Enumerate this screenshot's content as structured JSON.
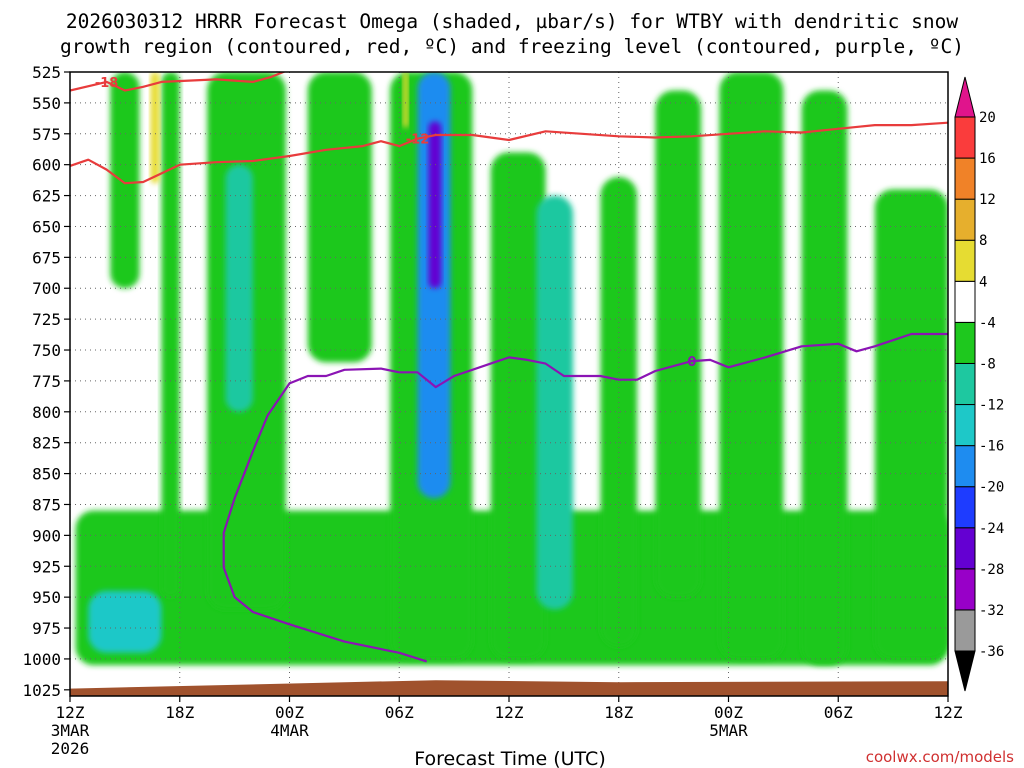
{
  "title": {
    "line1": "2026030312 HRRR Forecast Omega (shaded, µbar/s) for WTBY with dendritic snow",
    "line2": "growth region (contoured, red, ºC) and freezing level (contoured, purple, ºC)"
  },
  "x_axis_label": "Forecast Time (UTC)",
  "credit": "coolwx.com/models",
  "colors": {
    "frame": "#000000",
    "ground": "#a0522d",
    "grid": "#666666",
    "red_contour": "#e83c3c",
    "purple_contour": "#8b14b4"
  },
  "chart_data": {
    "type": "heatmap",
    "y_axis": {
      "quantity": "pressure (hPa)",
      "range": [
        525,
        1025
      ],
      "ticks": [
        525,
        550,
        575,
        600,
        625,
        650,
        675,
        700,
        725,
        750,
        775,
        800,
        825,
        850,
        875,
        900,
        925,
        950,
        975,
        1000,
        1025
      ]
    },
    "x_axis": {
      "quantity": "forecast hour",
      "range": [
        0,
        48
      ],
      "ticks": [
        {
          "hour": 0,
          "label": "12Z",
          "sub1": "3MAR",
          "sub2": "2026"
        },
        {
          "hour": 6,
          "label": "18Z",
          "sub1": "",
          "sub2": ""
        },
        {
          "hour": 12,
          "label": "00Z",
          "sub1": "4MAR",
          "sub2": ""
        },
        {
          "hour": 18,
          "label": "06Z",
          "sub1": "",
          "sub2": ""
        },
        {
          "hour": 24,
          "label": "12Z",
          "sub1": "",
          "sub2": ""
        },
        {
          "hour": 30,
          "label": "18Z",
          "sub1": "",
          "sub2": ""
        },
        {
          "hour": 36,
          "label": "00Z",
          "sub1": "5MAR",
          "sub2": ""
        },
        {
          "hour": 42,
          "label": "06Z",
          "sub1": "",
          "sub2": ""
        },
        {
          "hour": 48,
          "label": "12Z",
          "sub1": "",
          "sub2": ""
        }
      ]
    },
    "colorbar": {
      "levels": [
        -36,
        -32,
        -28,
        -24,
        -20,
        -16,
        -12,
        -8,
        -4,
        4,
        8,
        12,
        16,
        20
      ],
      "labels": [
        "-36",
        "-32",
        "-28",
        "-24",
        "-20",
        "-16",
        "-12",
        "-8",
        "-4",
        "4",
        "8",
        "12",
        "16",
        "20"
      ],
      "colors": [
        "#000000",
        "#9a9a9a",
        "#9800c8",
        "#6400d2",
        "#1e3cff",
        "#1e8cf0",
        "#1ec8c8",
        "#1ec8a0",
        "#1ec81e",
        "#ffffff",
        "#e6dc32",
        "#e6af2d",
        "#f08228",
        "#fa3c3c",
        "#e0148c"
      ]
    },
    "omega_regions": [
      {
        "hour_start": 0.3,
        "hour_end": 48,
        "p_top": 880,
        "p_bottom": 1005,
        "omega": -6,
        "note": "broad low-level ascent"
      },
      {
        "hour_start": 1,
        "hour_end": 5,
        "p_top": 945,
        "p_bottom": 995,
        "omega": -13
      },
      {
        "hour_start": 2.2,
        "hour_end": 3.8,
        "p_top": 525,
        "p_bottom": 700,
        "omega": -6
      },
      {
        "hour_start": 5,
        "hour_end": 6,
        "p_top": 525,
        "p_bottom": 950,
        "omega": -6
      },
      {
        "hour_start": 7.5,
        "hour_end": 11.8,
        "p_top": 525,
        "p_bottom": 960,
        "omega": -7
      },
      {
        "hour_start": 8.5,
        "hour_end": 10,
        "p_top": 600,
        "p_bottom": 800,
        "omega": -11
      },
      {
        "hour_start": 13,
        "hour_end": 16.5,
        "p_top": 525,
        "p_bottom": 760,
        "omega": -6
      },
      {
        "hour_start": 17.5,
        "hour_end": 22,
        "p_top": 525,
        "p_bottom": 1000,
        "omega": -8
      },
      {
        "hour_start": 19,
        "hour_end": 20.8,
        "p_top": 525,
        "p_bottom": 870,
        "omega": -18,
        "note": "strongest ascent core"
      },
      {
        "hour_start": 19.6,
        "hour_end": 20.3,
        "p_top": 565,
        "p_bottom": 700,
        "omega": -27
      },
      {
        "hour_start": 23,
        "hour_end": 26,
        "p_top": 590,
        "p_bottom": 1000,
        "omega": -7
      },
      {
        "hour_start": 25.5,
        "hour_end": 27.5,
        "p_top": 625,
        "p_bottom": 960,
        "omega": -10
      },
      {
        "hour_start": 29,
        "hour_end": 31,
        "p_top": 610,
        "p_bottom": 990,
        "omega": -6
      },
      {
        "hour_start": 32,
        "hour_end": 34.5,
        "p_top": 540,
        "p_bottom": 950,
        "omega": -6
      },
      {
        "hour_start": 35.5,
        "hour_end": 39,
        "p_top": 525,
        "p_bottom": 1000,
        "omega": -6
      },
      {
        "hour_start": 40,
        "hour_end": 42.5,
        "p_top": 540,
        "p_bottom": 1005,
        "omega": -7
      },
      {
        "hour_start": 44,
        "hour_end": 48,
        "p_top": 620,
        "p_bottom": 1000,
        "omega": -6
      },
      {
        "hour_start": 4.4,
        "hour_end": 4.9,
        "p_top": 525,
        "p_bottom": 615,
        "omega": 5
      },
      {
        "hour_start": 18.2,
        "hour_end": 18.5,
        "p_top": 525,
        "p_bottom": 570,
        "omega": 5
      }
    ],
    "contours": [
      {
        "name": "dendritic growth region -18",
        "label": "-18",
        "color": "#e83c3c",
        "points": [
          [
            0,
            540
          ],
          [
            2,
            533
          ],
          [
            3,
            540
          ],
          [
            4,
            537
          ],
          [
            5,
            533
          ],
          [
            8,
            531
          ],
          [
            10,
            533
          ],
          [
            11,
            529
          ],
          [
            12,
            523
          ]
        ]
      },
      {
        "name": "dendritic growth region -12",
        "label": "-12",
        "color": "#e83c3c",
        "points": [
          [
            0,
            601
          ],
          [
            1,
            596
          ],
          [
            2,
            604
          ],
          [
            3,
            615
          ],
          [
            4,
            614
          ],
          [
            6,
            600
          ],
          [
            8,
            598
          ],
          [
            10,
            597
          ],
          [
            12,
            593
          ],
          [
            14,
            588
          ],
          [
            16,
            585
          ],
          [
            17,
            581
          ],
          [
            18,
            585
          ],
          [
            19,
            579
          ],
          [
            20,
            576
          ],
          [
            22,
            576
          ],
          [
            24,
            580
          ],
          [
            26,
            573
          ],
          [
            28,
            575
          ],
          [
            30,
            577
          ],
          [
            32,
            578
          ],
          [
            34,
            577
          ],
          [
            36,
            575
          ],
          [
            38,
            573
          ],
          [
            40,
            574
          ],
          [
            42,
            571
          ],
          [
            44,
            568
          ],
          [
            46,
            568
          ],
          [
            48,
            566
          ]
        ]
      },
      {
        "name": "freezing level 0",
        "label": "0",
        "color": "#8b14b4",
        "points": [
          [
            19.5,
            1002
          ],
          [
            18,
            995
          ],
          [
            15,
            986
          ],
          [
            12,
            972
          ],
          [
            10,
            962
          ],
          [
            9,
            950
          ],
          [
            8.4,
            926
          ],
          [
            8.4,
            898
          ],
          [
            9,
            870
          ],
          [
            10,
            832
          ],
          [
            10.8,
            803
          ],
          [
            12,
            777
          ],
          [
            13,
            771
          ],
          [
            14,
            771
          ],
          [
            15,
            766
          ],
          [
            17,
            765
          ],
          [
            18,
            768
          ],
          [
            19,
            768
          ],
          [
            20,
            780
          ],
          [
            21,
            771
          ],
          [
            23,
            761
          ],
          [
            24,
            756
          ],
          [
            25,
            758
          ],
          [
            26,
            761
          ],
          [
            27,
            771
          ],
          [
            29,
            771
          ],
          [
            30,
            774
          ],
          [
            31,
            774
          ],
          [
            32,
            767
          ],
          [
            34,
            759
          ],
          [
            35,
            758
          ],
          [
            36,
            764
          ],
          [
            38,
            756
          ],
          [
            40,
            747
          ],
          [
            42,
            745
          ],
          [
            43,
            751
          ],
          [
            44,
            747
          ],
          [
            46,
            737
          ],
          [
            48,
            737
          ]
        ]
      }
    ],
    "ground": {
      "p_top_start": 1024,
      "p_top_end": 1018,
      "p_bottom": 1030
    }
  }
}
